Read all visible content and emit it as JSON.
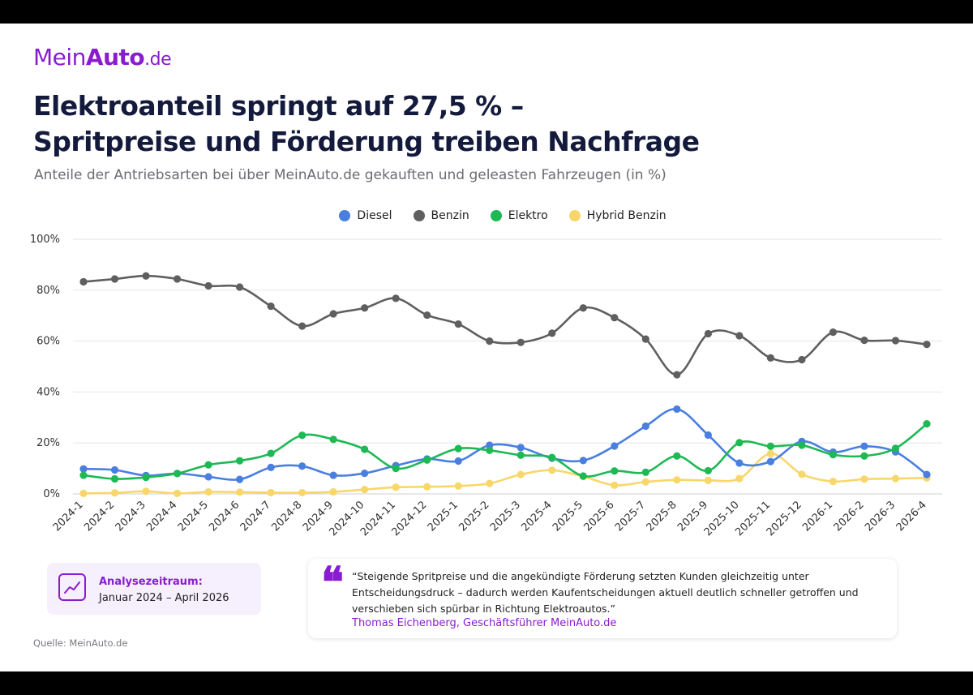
{
  "logo": {
    "part1": "Mein",
    "part2": "Auto",
    "part3": ".de"
  },
  "title_line1": "Elektroanteil springt auf 27,5 % –",
  "title_line2": "Spritpreise und Förderung treiben Nachfrage",
  "subtitle": "Anteile der Antriebsarten bei über MeinAuto.de gekauften und geleasten Fahrzeugen (in %)",
  "colors": {
    "brand": "#8a1ccf",
    "grid": "#e6e6ea",
    "axis_text": "#333333"
  },
  "chart_data": {
    "type": "line",
    "title": "Elektroanteil springt auf 27,5 % – Spritpreise und Förderung treiben Nachfrage",
    "subtitle": "Anteile der Antriebsarten bei über MeinAuto.de gekauften und geleasten Fahrzeugen (in %)",
    "xlabel": "",
    "ylabel": "",
    "ylim": [
      0,
      100
    ],
    "yticks": [
      "0%",
      "20%",
      "40%",
      "60%",
      "80%",
      "100%"
    ],
    "grid": true,
    "legend_position": "top-center",
    "categories": [
      "2024-1",
      "2024-2",
      "2024-3",
      "2024-4",
      "2024-5",
      "2024-6",
      "2024-7",
      "2024-8",
      "2024-9",
      "2024-10",
      "2024-11",
      "2024-12",
      "2025-1",
      "2025-2",
      "2025-3",
      "2025-4",
      "2025-5",
      "2025-6",
      "2025-7",
      "2025-8",
      "2025-9",
      "2025-10",
      "2025-11",
      "2025-12",
      "2026-1",
      "2026-2",
      "2026-3",
      "2026-4"
    ],
    "series": [
      {
        "name": "Diesel",
        "color": "#4a7fe0",
        "values": [
          9.8,
          9.4,
          7.2,
          8.0,
          6.7,
          5.7,
          10.4,
          10.9,
          7.3,
          8.1,
          11.1,
          13.7,
          12.9,
          19.1,
          18.2,
          14.0,
          13.1,
          18.8,
          26.6,
          33.3,
          23.1,
          12.1,
          12.7,
          20.6,
          16.4,
          18.7,
          16.5,
          7.6
        ]
      },
      {
        "name": "Benzin",
        "color": "#5f5f5f",
        "values": [
          83.3,
          84.4,
          85.6,
          84.4,
          81.7,
          81.2,
          73.7,
          65.9,
          70.7,
          73.0,
          76.8,
          70.2,
          66.7,
          60.0,
          59.5,
          63.1,
          73.0,
          69.2,
          60.8,
          46.8,
          62.9,
          62.1,
          53.4,
          52.7,
          63.5,
          60.3,
          60.2,
          58.7
        ]
      },
      {
        "name": "Elektro",
        "color": "#1db954",
        "values": [
          7.3,
          5.9,
          6.5,
          8.0,
          11.4,
          13.0,
          15.9,
          23.0,
          21.4,
          17.5,
          10.0,
          13.3,
          17.8,
          17.1,
          15.2,
          14.3,
          7.0,
          9.0,
          8.5,
          14.9,
          9.1,
          20.1,
          18.7,
          19.1,
          15.4,
          14.9,
          17.9,
          27.5
        ]
      },
      {
        "name": "Hybrid Benzin",
        "color": "#f8d76a",
        "values": [
          0.2,
          0.4,
          1.0,
          0.2,
          0.8,
          0.7,
          0.5,
          0.5,
          0.8,
          1.7,
          2.6,
          2.8,
          3.1,
          4.1,
          7.6,
          9.3,
          6.8,
          3.4,
          4.7,
          5.5,
          5.3,
          6.0,
          15.8,
          7.7,
          4.9,
          5.8,
          6.0,
          6.3
        ]
      }
    ]
  },
  "info": {
    "label": "Analysezeitraum:",
    "value": "Januar 2024 – April 2026"
  },
  "quote": {
    "text": "“Steigende Spritpreise und die angekündigte Förderung setzten Kunden gleichzeitig unter Entscheidungsdruck – dadurch werden Kaufentscheidungen aktuell deutlich schneller getroffen und verschieben sich spürbar in Richtung Elektroautos.”",
    "author": "Thomas Eichenberg, Geschäftsführer MeinAuto.de",
    "mark": "❝"
  },
  "source": "Quelle: MeinAuto.de"
}
